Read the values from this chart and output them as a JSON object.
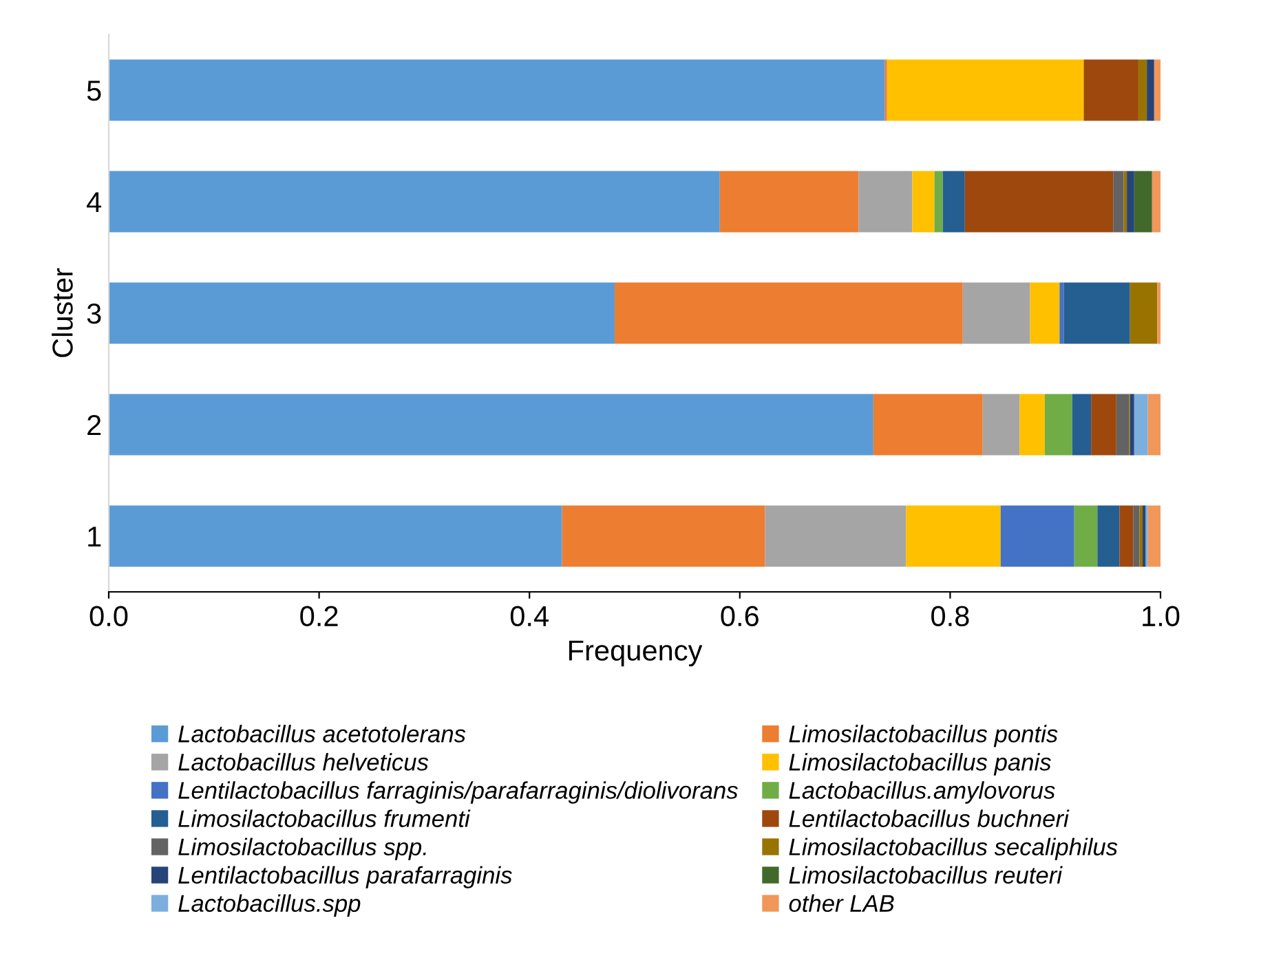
{
  "chart_data": {
    "type": "bar",
    "orientation": "horizontal",
    "stacked": true,
    "xlabel": "Frequency",
    "ylabel": "Cluster",
    "categories": [
      "5",
      "4",
      "3",
      "2",
      "1"
    ],
    "xlim": [
      0,
      1
    ],
    "xticks": [
      {
        "value": 0,
        "label": "0.0"
      },
      {
        "value": 0.2,
        "label": "0.2"
      },
      {
        "value": 0.4,
        "label": "0.4"
      },
      {
        "value": 0.6,
        "label": "0.6"
      },
      {
        "value": 0.8,
        "label": "0.8"
      },
      {
        "value": 1,
        "label": "1.0"
      }
    ],
    "grid": false,
    "legend": "bottom",
    "series": [
      {
        "name": "Lactobacillus acetotolerans",
        "color": "#5b9bd5",
        "values": [
          0.738,
          0.581,
          0.481,
          0.727,
          0.431
        ]
      },
      {
        "name": "Limosilactobacillus pontis",
        "color": "#ed7d31",
        "values": [
          0.002,
          0.132,
          0.331,
          0.104,
          0.193
        ]
      },
      {
        "name": "Lactobacillus helveticus",
        "color": "#a5a5a5",
        "values": [
          0,
          0.051,
          0.064,
          0.035,
          0.134
        ]
      },
      {
        "name": "Limosilactobacillus panis",
        "color": "#ffc000",
        "values": [
          0.187,
          0.021,
          0.028,
          0.024,
          0.09
        ]
      },
      {
        "name": "Lentilactobacillus farraginis/parafarraginis/diolivorans",
        "color": "#4472c4",
        "values": [
          0,
          0,
          0.004,
          0,
          0.07
        ]
      },
      {
        "name": "Lactobacillus.amylovorus",
        "color": "#70ad47",
        "values": [
          0,
          0.008,
          0,
          0.026,
          0.022
        ]
      },
      {
        "name": "Limosilactobacillus frumenti",
        "color": "#255e91",
        "values": [
          0,
          0.021,
          0.063,
          0.018,
          0.021
        ]
      },
      {
        "name": "Lentilactobacillus buchneri",
        "color": "#9e480e",
        "values": [
          0.052,
          0.141,
          0,
          0.024,
          0.013
        ]
      },
      {
        "name": "Limosilactobacillus spp.",
        "color": "#636363",
        "values": [
          0,
          0.01,
          0,
          0.012,
          0.006
        ]
      },
      {
        "name": "Limosilactobacillus secaliphilus",
        "color": "#997300",
        "values": [
          0.008,
          0.003,
          0.026,
          0.001,
          0.003
        ]
      },
      {
        "name": "Lentilactobacillus parafarraginis",
        "color": "#264478",
        "values": [
          0.007,
          0.007,
          0,
          0.004,
          0.003
        ]
      },
      {
        "name": "Limosilactobacillus reuteri",
        "color": "#43682b",
        "values": [
          0,
          0.017,
          0,
          0,
          0
        ]
      },
      {
        "name": "Lactobacillus.spp",
        "color": "#7cafdd",
        "values": [
          0,
          0,
          0,
          0.013,
          0.002
        ]
      },
      {
        "name": "other LAB",
        "color": "#f1975a",
        "values": [
          0.006,
          0.008,
          0.003,
          0.012,
          0.012
        ]
      }
    ]
  }
}
